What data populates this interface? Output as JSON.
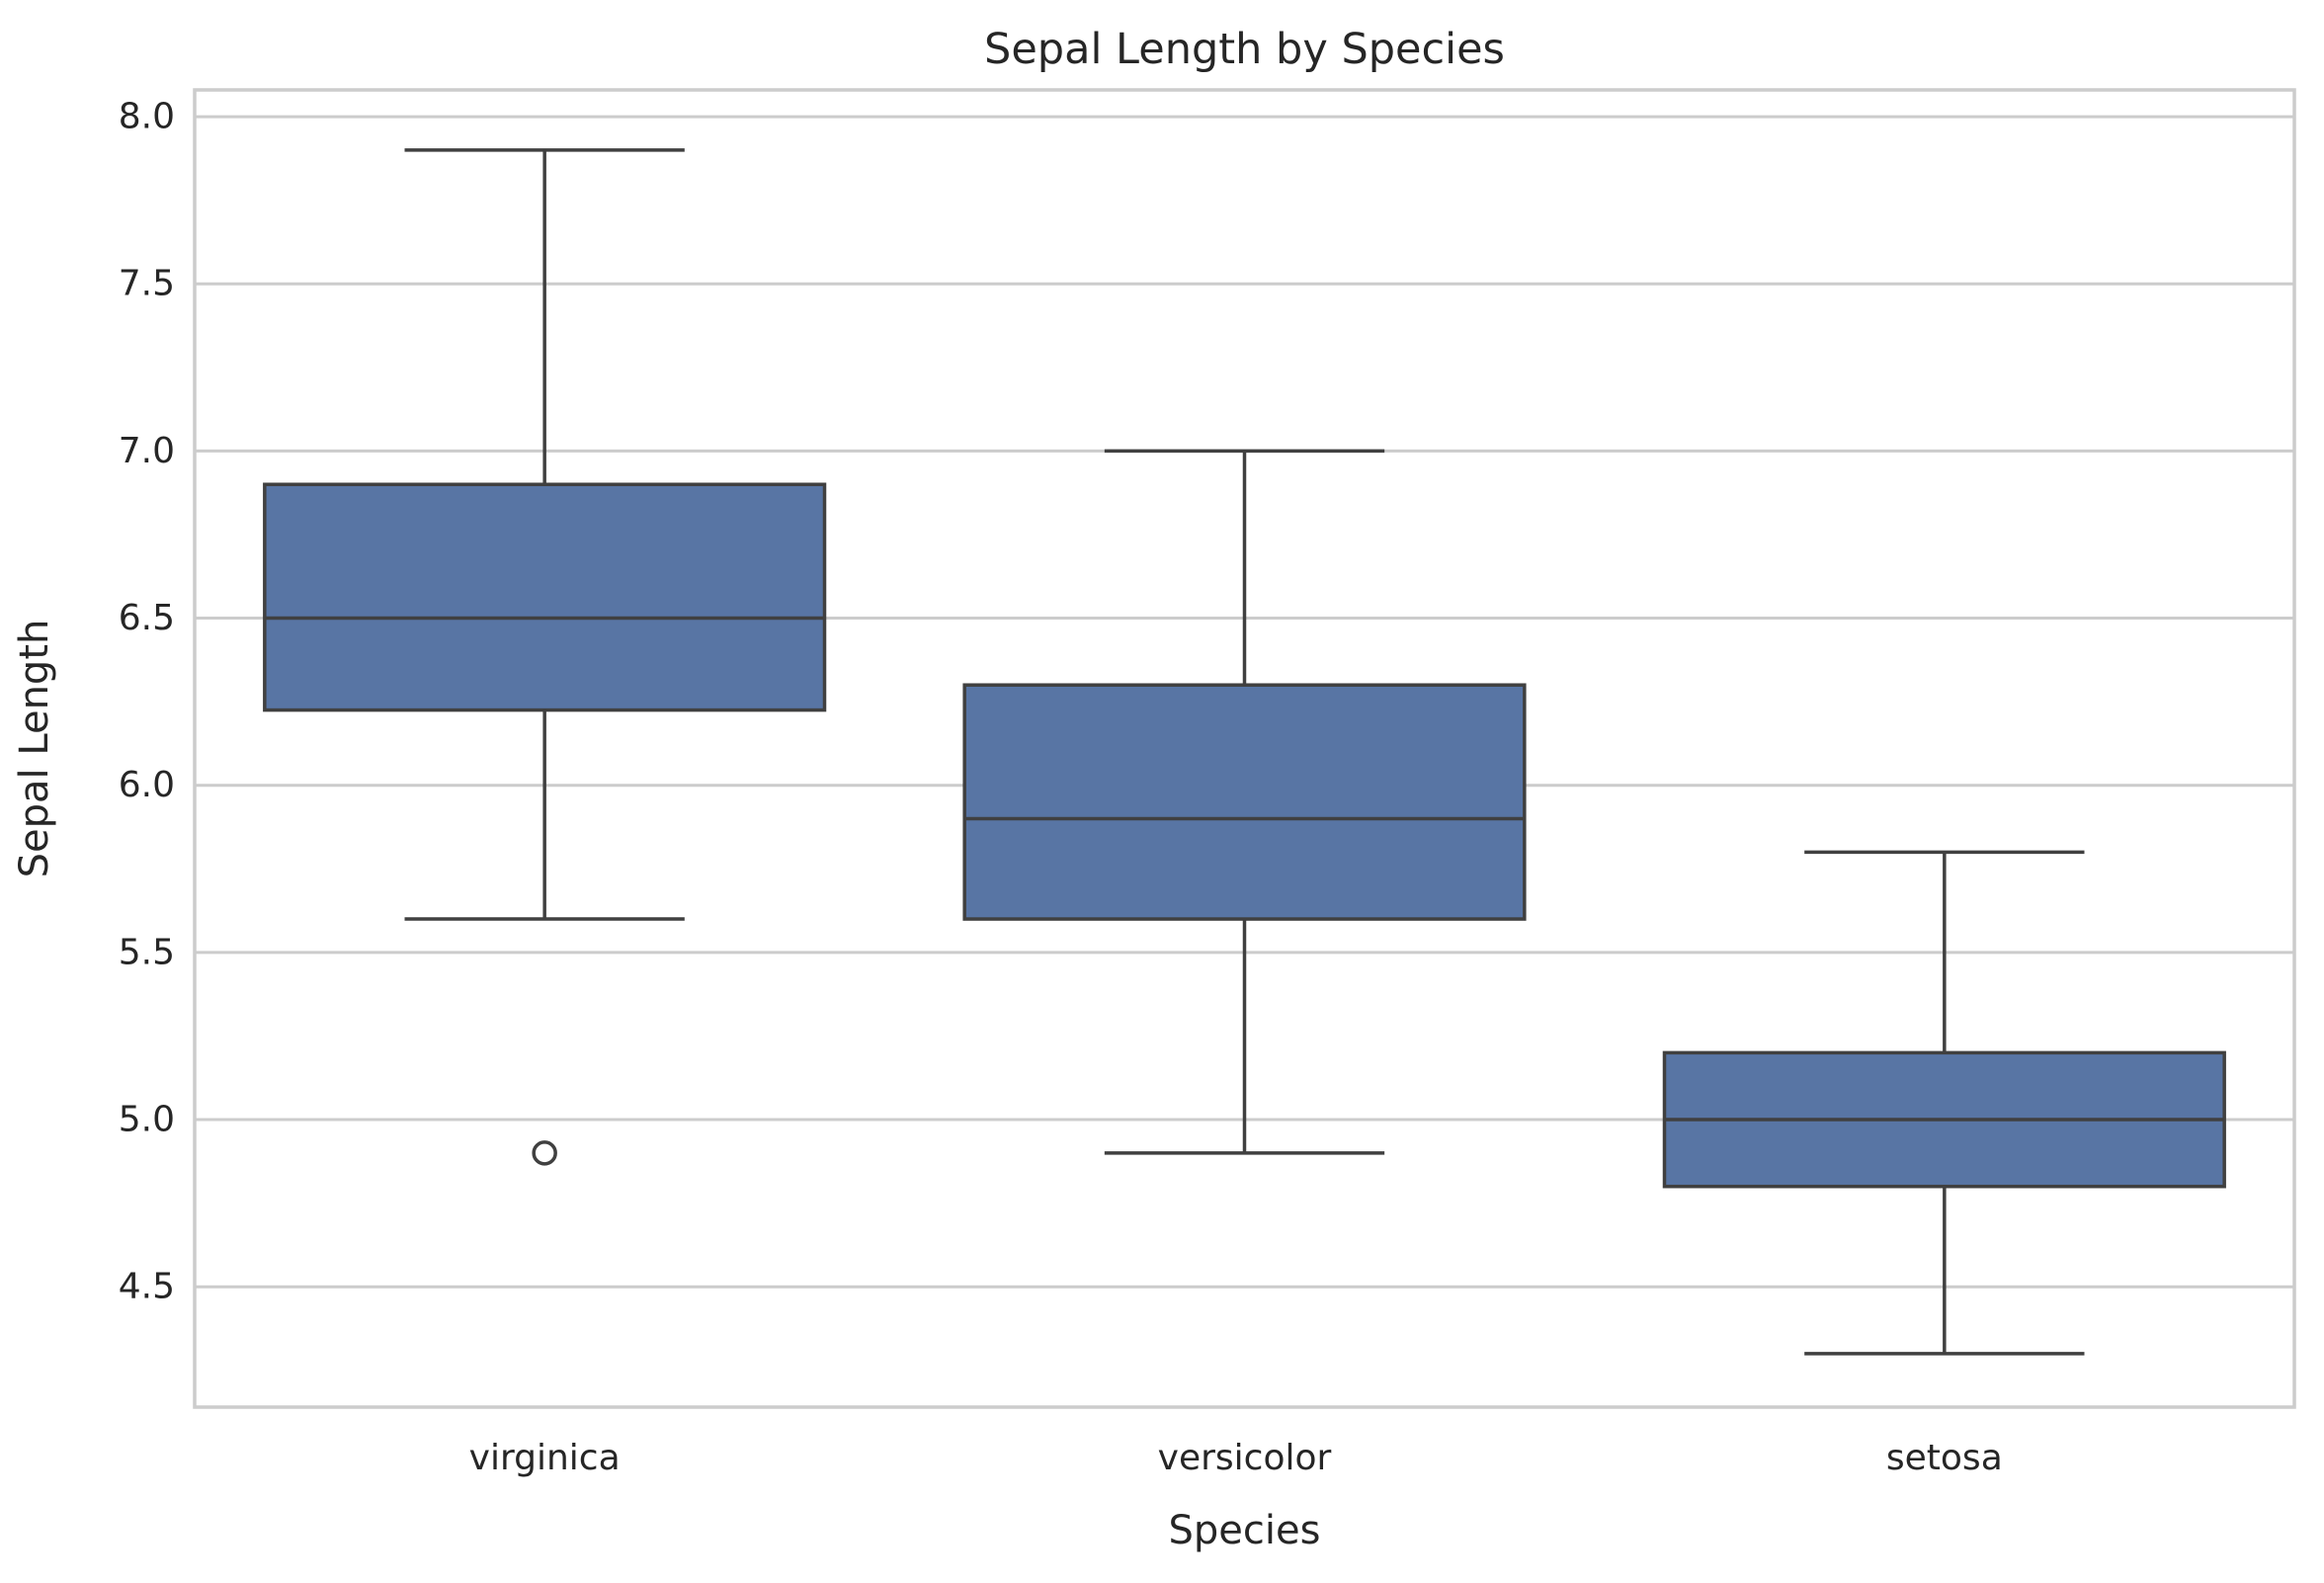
{
  "chart_data": {
    "type": "box",
    "title": "Sepal Length by Species",
    "xlabel": "Species",
    "ylabel": "Sepal Length",
    "categories": [
      "virginica",
      "versicolor",
      "setosa"
    ],
    "boxes": [
      {
        "category": "virginica",
        "whisker_low": 5.6,
        "q1": 6.225,
        "median": 6.5,
        "q3": 6.9,
        "whisker_high": 7.9,
        "outliers": [
          4.9
        ]
      },
      {
        "category": "versicolor",
        "whisker_low": 4.9,
        "q1": 5.6,
        "median": 5.9,
        "q3": 6.3,
        "whisker_high": 7.0,
        "outliers": []
      },
      {
        "category": "setosa",
        "whisker_low": 4.3,
        "q1": 4.8,
        "median": 5.0,
        "q3": 5.2,
        "whisker_high": 5.8,
        "outliers": []
      }
    ],
    "yticks": [
      "4.5",
      "5.0",
      "5.5",
      "6.0",
      "6.5",
      "7.0",
      "7.5",
      "8.0"
    ],
    "ylim": [
      4.14,
      8.08
    ],
    "grid": "horizontal",
    "colors": {
      "box_fill": "#5875a4",
      "line": "#404040",
      "grid": "#cccccc",
      "spine": "#cccccc",
      "text": "#262626"
    }
  }
}
